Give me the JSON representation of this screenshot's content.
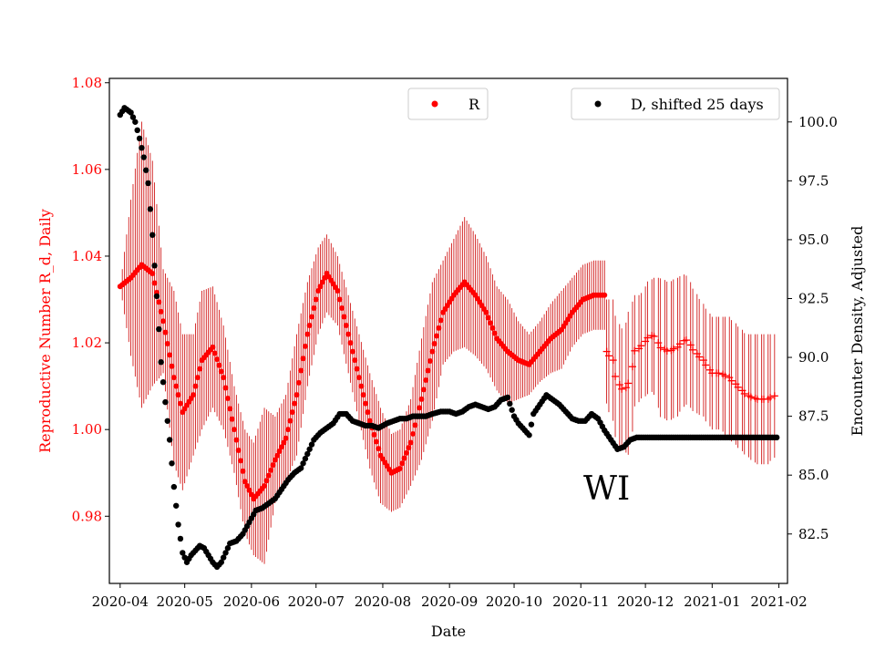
{
  "chart_data": {
    "type": "scatter",
    "xlabel": "Date",
    "ylabel_left": "Reproductive Number R_d, Daily",
    "ylabel_right": "Encounter Density, Adjusted",
    "x_ticks": [
      "2020-04",
      "2020-05",
      "2020-06",
      "2020-07",
      "2020-08",
      "2020-09",
      "2020-10",
      "2020-11",
      "2020-12",
      "2021-01",
      "2021-02"
    ],
    "y_left_ticks": [
      "0.98",
      "1.00",
      "1.02",
      "1.04",
      "1.06",
      "1.08"
    ],
    "y_right_ticks": [
      "82.5",
      "85.0",
      "87.5",
      "90.0",
      "92.5",
      "95.0",
      "97.5",
      "100.0"
    ],
    "ylim_left": [
      0.9645,
      1.081
    ],
    "ylim_right": [
      80.4,
      101.85
    ],
    "xlim": [
      "2020-03-27",
      "2021-02-05"
    ],
    "annotation": "WI",
    "legend": [
      {
        "label": "R",
        "placement": "upper-center"
      },
      {
        "label": "D, shifted 25 days",
        "placement": "upper-right"
      }
    ],
    "colors": {
      "R": "#ff0000",
      "D": "#000000",
      "error_bar": "#cc0000"
    },
    "series": [
      {
        "name": "R",
        "axis": "left",
        "marker": "dot",
        "x_range": [
          "2020-04-01",
          "2020-11-12"
        ],
        "points": [
          [
            "2020-04-01",
            1.033
          ],
          [
            "2020-04-06",
            1.035
          ],
          [
            "2020-04-11",
            1.038
          ],
          [
            "2020-04-16",
            1.036
          ],
          [
            "2020-04-21",
            1.025
          ],
          [
            "2020-04-26",
            1.012
          ],
          [
            "2020-04-30",
            1.004
          ],
          [
            "2020-05-05",
            1.008
          ],
          [
            "2020-05-09",
            1.016
          ],
          [
            "2020-05-14",
            1.019
          ],
          [
            "2020-05-19",
            1.012
          ],
          [
            "2020-05-24",
            1.0
          ],
          [
            "2020-05-29",
            0.988
          ],
          [
            "2020-06-02",
            0.984
          ],
          [
            "2020-06-07",
            0.987
          ],
          [
            "2020-06-12",
            0.993
          ],
          [
            "2020-06-17",
            0.998
          ],
          [
            "2020-06-22",
            1.008
          ],
          [
            "2020-06-27",
            1.022
          ],
          [
            "2020-07-02",
            1.032
          ],
          [
            "2020-07-06",
            1.036
          ],
          [
            "2020-07-11",
            1.032
          ],
          [
            "2020-07-16",
            1.022
          ],
          [
            "2020-07-21",
            1.012
          ],
          [
            "2020-07-26",
            1.002
          ],
          [
            "2020-07-31",
            0.994
          ],
          [
            "2020-08-05",
            0.99
          ],
          [
            "2020-08-09",
            0.991
          ],
          [
            "2020-08-14",
            0.997
          ],
          [
            "2020-08-19",
            1.007
          ],
          [
            "2020-08-24",
            1.018
          ],
          [
            "2020-08-29",
            1.027
          ],
          [
            "2020-09-03",
            1.031
          ],
          [
            "2020-09-08",
            1.034
          ],
          [
            "2020-09-13",
            1.031
          ],
          [
            "2020-09-18",
            1.027
          ],
          [
            "2020-09-23",
            1.021
          ],
          [
            "2020-09-28",
            1.018
          ],
          [
            "2020-10-03",
            1.016
          ],
          [
            "2020-10-08",
            1.015
          ],
          [
            "2020-10-13",
            1.018
          ],
          [
            "2020-10-18",
            1.021
          ],
          [
            "2020-10-23",
            1.023
          ],
          [
            "2020-10-28",
            1.027
          ],
          [
            "2020-11-02",
            1.03
          ],
          [
            "2020-11-07",
            1.031
          ],
          [
            "2020-11-12",
            1.031
          ]
        ],
        "error_halfwidth": [
          0.0,
          0.018,
          0.033,
          0.026,
          0.012,
          0.02,
          0.018,
          0.014,
          0.016,
          0.014,
          0.012,
          0.01,
          0.012,
          0.013,
          0.018,
          0.01,
          0.01,
          0.014,
          0.012,
          0.01,
          0.009,
          0.008,
          0.009,
          0.01,
          0.011,
          0.011,
          0.009,
          0.009,
          0.01,
          0.014,
          0.016,
          0.012,
          0.013,
          0.015,
          0.014,
          0.013,
          0.012,
          0.012,
          0.009,
          0.007,
          0.007,
          0.008,
          0.009,
          0.008,
          0.008,
          0.008,
          0.008
        ]
      },
      {
        "name": "R",
        "axis": "left",
        "marker": "plus",
        "x_range": [
          "2020-11-13",
          "2021-01-31"
        ],
        "points": [
          [
            "2020-11-13",
            1.018
          ],
          [
            "2020-11-16",
            1.016
          ],
          [
            "2020-11-18",
            1.011
          ],
          [
            "2020-11-21",
            1.009
          ],
          [
            "2020-11-24",
            1.011
          ],
          [
            "2020-11-26",
            1.018
          ],
          [
            "2020-11-29",
            1.019
          ],
          [
            "2020-12-02",
            1.021
          ],
          [
            "2020-12-05",
            1.022
          ],
          [
            "2020-12-08",
            1.019
          ],
          [
            "2020-12-12",
            1.018
          ],
          [
            "2020-12-16",
            1.019
          ],
          [
            "2020-12-20",
            1.021
          ],
          [
            "2020-12-24",
            1.018
          ],
          [
            "2020-12-28",
            1.016
          ],
          [
            "2021-01-01",
            1.013
          ],
          [
            "2021-01-05",
            1.013
          ],
          [
            "2021-01-09",
            1.012
          ],
          [
            "2021-01-13",
            1.01
          ],
          [
            "2021-01-17",
            1.008
          ],
          [
            "2021-01-22",
            1.007
          ],
          [
            "2021-01-27",
            1.007
          ],
          [
            "2021-01-31",
            1.008
          ]
        ],
        "error_halfwidth": [
          0.012,
          0.014,
          0.014,
          0.014,
          0.017,
          0.013,
          0.012,
          0.013,
          0.013,
          0.016,
          0.016,
          0.016,
          0.015,
          0.014,
          0.013,
          0.013,
          0.013,
          0.014,
          0.014,
          0.014,
          0.015,
          0.015,
          0.014
        ]
      },
      {
        "name": "D, shifted 25 days",
        "axis": "right",
        "marker": "dot",
        "points": [
          [
            "2020-04-01",
            100.3
          ],
          [
            "2020-04-03",
            100.6
          ],
          [
            "2020-04-06",
            100.4
          ],
          [
            "2020-04-08",
            100.0
          ],
          [
            "2020-04-10",
            99.3
          ],
          [
            "2020-04-12",
            98.5
          ],
          [
            "2020-04-14",
            97.4
          ],
          [
            "2020-04-16",
            95.2
          ],
          [
            "2020-04-18",
            92.6
          ],
          [
            "2020-04-20",
            89.8
          ],
          [
            "2020-04-22",
            88.1
          ],
          [
            "2020-04-24",
            86.5
          ],
          [
            "2020-04-26",
            84.5
          ],
          [
            "2020-04-28",
            82.9
          ],
          [
            "2020-04-30",
            81.7
          ],
          [
            "2020-05-02",
            81.3
          ],
          [
            "2020-05-04",
            81.6
          ],
          [
            "2020-05-06",
            81.8
          ],
          [
            "2020-05-08",
            82.0
          ],
          [
            "2020-05-10",
            81.9
          ],
          [
            "2020-05-12",
            81.6
          ],
          [
            "2020-05-14",
            81.3
          ],
          [
            "2020-05-16",
            81.1
          ],
          [
            "2020-05-18",
            81.3
          ],
          [
            "2020-05-20",
            81.7
          ],
          [
            "2020-05-22",
            82.1
          ],
          [
            "2020-05-25",
            82.2
          ],
          [
            "2020-05-28",
            82.5
          ],
          [
            "2020-05-31",
            83.0
          ],
          [
            "2020-06-03",
            83.5
          ],
          [
            "2020-06-06",
            83.6
          ],
          [
            "2020-06-09",
            83.8
          ],
          [
            "2020-06-12",
            84.0
          ],
          [
            "2020-06-15",
            84.4
          ],
          [
            "2020-06-18",
            84.8
          ],
          [
            "2020-06-21",
            85.1
          ],
          [
            "2020-06-24",
            85.3
          ],
          [
            "2020-06-27",
            85.9
          ],
          [
            "2020-06-30",
            86.5
          ],
          [
            "2020-07-03",
            86.8
          ],
          [
            "2020-07-06",
            87.0
          ],
          [
            "2020-07-09",
            87.2
          ],
          [
            "2020-07-12",
            87.6
          ],
          [
            "2020-07-15",
            87.6
          ],
          [
            "2020-07-18",
            87.3
          ],
          [
            "2020-07-21",
            87.2
          ],
          [
            "2020-07-24",
            87.1
          ],
          [
            "2020-07-27",
            87.1
          ],
          [
            "2020-07-30",
            87.0
          ],
          [
            "2020-08-03",
            87.2
          ],
          [
            "2020-08-06",
            87.3
          ],
          [
            "2020-08-09",
            87.4
          ],
          [
            "2020-08-12",
            87.4
          ],
          [
            "2020-08-15",
            87.5
          ],
          [
            "2020-08-18",
            87.5
          ],
          [
            "2020-08-21",
            87.5
          ],
          [
            "2020-08-24",
            87.6
          ],
          [
            "2020-08-28",
            87.7
          ],
          [
            "2020-09-01",
            87.7
          ],
          [
            "2020-09-04",
            87.6
          ],
          [
            "2020-09-07",
            87.7
          ],
          [
            "2020-09-10",
            87.9
          ],
          [
            "2020-09-13",
            88.0
          ],
          [
            "2020-09-16",
            87.9
          ],
          [
            "2020-09-19",
            87.8
          ],
          [
            "2020-09-22",
            87.9
          ],
          [
            "2020-09-25",
            88.2
          ],
          [
            "2020-09-28",
            88.3
          ],
          [
            "2020-10-01",
            87.5
          ],
          [
            "2020-10-03",
            87.2
          ],
          [
            "2020-10-05",
            87.0
          ],
          [
            "2020-10-08",
            86.7
          ],
          [
            "2020-10-10",
            87.6
          ],
          [
            "2020-10-13",
            88.0
          ],
          [
            "2020-10-16",
            88.4
          ],
          [
            "2020-10-19",
            88.2
          ],
          [
            "2020-10-22",
            88.0
          ],
          [
            "2020-10-25",
            87.7
          ],
          [
            "2020-10-28",
            87.4
          ],
          [
            "2020-10-31",
            87.3
          ],
          [
            "2020-11-03",
            87.3
          ],
          [
            "2020-11-06",
            87.6
          ],
          [
            "2020-11-09",
            87.4
          ],
          [
            "2020-11-12",
            86.9
          ],
          [
            "2020-11-15",
            86.5
          ],
          [
            "2020-11-18",
            86.1
          ],
          [
            "2020-11-21",
            86.2
          ],
          [
            "2020-11-24",
            86.5
          ],
          [
            "2020-11-27",
            86.6
          ],
          [
            "2020-12-01",
            86.6
          ],
          [
            "2020-12-05",
            86.6
          ],
          [
            "2020-12-10",
            86.6
          ],
          [
            "2020-12-15",
            86.6
          ],
          [
            "2020-12-20",
            86.6
          ],
          [
            "2020-12-25",
            86.6
          ],
          [
            "2020-12-30",
            86.6
          ],
          [
            "2021-01-04",
            86.6
          ],
          [
            "2021-01-09",
            86.6
          ],
          [
            "2021-01-14",
            86.6
          ],
          [
            "2021-01-19",
            86.6
          ],
          [
            "2021-01-24",
            86.6
          ],
          [
            "2021-01-31",
            86.6
          ]
        ]
      }
    ]
  }
}
